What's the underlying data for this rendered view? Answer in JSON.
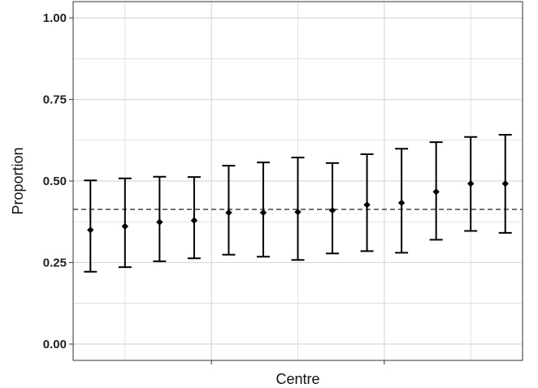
{
  "chart_data": {
    "type": "scatter",
    "title": "",
    "xlabel": "Centre",
    "ylabel": "Proportion",
    "ylim": [
      -0.05,
      1.05
    ],
    "y_ticks": [
      0.0,
      0.25,
      0.5,
      0.75,
      1.0
    ],
    "y_tick_labels": [
      "0.00",
      "0.25",
      "0.50",
      "0.75",
      "1.00"
    ],
    "x_range": [
      0.5,
      13.5
    ],
    "grid": true,
    "legend": "none",
    "reference_line": {
      "y": 0.413,
      "style": "dashed"
    },
    "series": [
      {
        "x": [
          1,
          2,
          3,
          4,
          5,
          6,
          7,
          8,
          9,
          10,
          11,
          12,
          13
        ],
        "values": [
          0.35,
          0.361,
          0.374,
          0.379,
          0.403,
          0.403,
          0.405,
          0.41,
          0.427,
          0.433,
          0.467,
          0.492,
          0.492
        ],
        "lower": [
          0.222,
          0.236,
          0.254,
          0.263,
          0.274,
          0.268,
          0.258,
          0.278,
          0.285,
          0.28,
          0.32,
          0.347,
          0.341
        ],
        "upper": [
          0.502,
          0.508,
          0.513,
          0.512,
          0.547,
          0.557,
          0.572,
          0.555,
          0.582,
          0.599,
          0.619,
          0.635,
          0.642
        ]
      }
    ],
    "colors": {
      "points": "#000000",
      "grid": "#d9d9d9",
      "axis": "#333333",
      "reference": "#333333"
    }
  }
}
